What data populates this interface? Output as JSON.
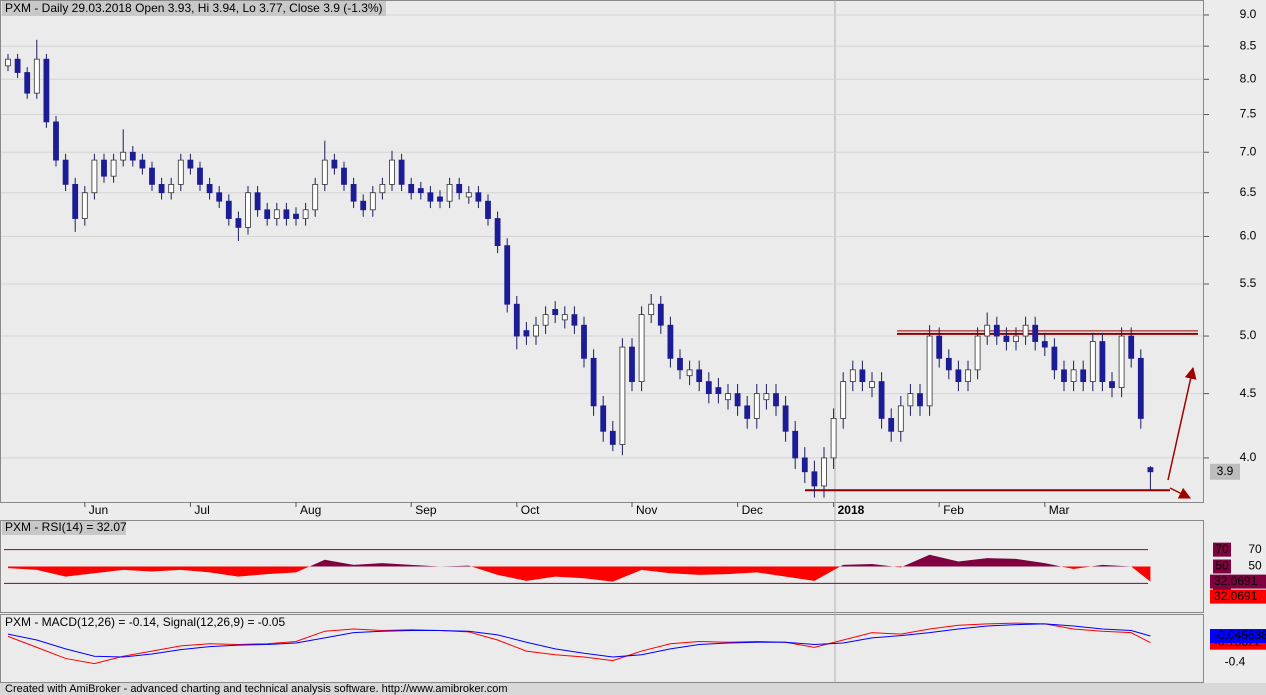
{
  "chart_data": {
    "type": "candlestick",
    "title": "PXM - Daily 29.03.2018 Open 3.93, Hi 3.94, Lo 3.77, Close 3.9 (-1.3%)",
    "open": [
      8.2,
      8.3,
      8.1,
      7.8,
      8.3,
      7.4,
      6.9,
      6.6,
      6.2,
      6.5,
      6.9,
      6.7,
      6.9,
      7.0,
      6.9,
      6.8,
      6.6,
      6.5,
      6.6,
      6.9,
      6.8,
      6.6,
      6.5,
      6.4,
      6.2,
      6.1,
      6.5,
      6.3,
      6.2,
      6.3,
      6.25,
      6.2,
      6.3,
      6.6,
      6.9,
      6.8,
      6.6,
      6.4,
      6.3,
      6.5,
      6.6,
      6.9,
      6.6,
      6.55,
      6.5,
      6.45,
      6.4,
      6.6,
      6.45,
      6.5,
      6.4,
      6.2,
      5.9,
      5.3,
      5.05,
      5.0,
      5.1,
      5.25,
      5.15,
      5.2,
      5.1,
      4.8,
      4.4,
      4.2,
      4.1,
      4.9,
      4.6,
      5.2,
      5.3,
      5.1,
      4.8,
      4.65,
      4.7,
      4.6,
      4.55,
      4.45,
      4.5,
      4.4,
      4.3,
      4.45,
      4.5,
      4.4,
      4.2,
      4.0,
      3.9,
      3.8,
      4.0,
      4.3,
      4.6,
      4.7,
      4.55,
      4.6,
      4.3,
      4.2,
      4.4,
      4.5,
      4.4,
      5.0,
      4.8,
      4.7,
      4.6,
      4.7,
      5.0,
      5.1,
      5.0,
      4.95,
      5.0,
      5.1,
      4.95,
      4.9,
      4.7,
      4.6,
      4.7,
      4.6,
      4.95,
      4.6,
      4.55,
      5.0,
      4.8,
      3.93
    ],
    "high": [
      8.38,
      8.38,
      8.18,
      8.6,
      8.38,
      7.48,
      6.98,
      6.68,
      6.58,
      6.98,
      6.98,
      6.98,
      7.3,
      7.08,
      6.98,
      6.88,
      6.68,
      6.68,
      6.98,
      6.98,
      6.88,
      6.68,
      6.58,
      6.48,
      6.28,
      6.58,
      6.58,
      6.38,
      6.38,
      6.38,
      6.33,
      6.38,
      6.68,
      7.15,
      6.98,
      6.88,
      6.68,
      6.48,
      6.58,
      6.68,
      7.02,
      6.98,
      6.68,
      6.63,
      6.58,
      6.53,
      6.68,
      6.68,
      6.58,
      6.58,
      6.48,
      6.28,
      5.98,
      5.38,
      5.13,
      5.18,
      5.28,
      5.33,
      5.28,
      5.28,
      5.18,
      4.88,
      4.48,
      4.28,
      4.98,
      4.98,
      5.28,
      5.4,
      5.38,
      5.18,
      4.88,
      4.78,
      4.78,
      4.68,
      4.63,
      4.58,
      4.58,
      4.48,
      4.58,
      4.58,
      4.58,
      4.48,
      4.28,
      4.08,
      3.98,
      4.08,
      4.38,
      4.68,
      4.78,
      4.78,
      4.68,
      4.68,
      4.38,
      4.48,
      4.58,
      4.58,
      5.1,
      5.08,
      4.88,
      4.78,
      4.78,
      5.08,
      5.22,
      5.18,
      5.08,
      5.08,
      5.18,
      5.18,
      5.03,
      4.98,
      4.78,
      4.78,
      4.78,
      5.03,
      5.03,
      4.68,
      5.08,
      5.08,
      4.88,
      3.94
    ],
    "low": [
      8.12,
      8.02,
      7.72,
      7.72,
      7.32,
      6.82,
      6.52,
      6.05,
      6.12,
      6.42,
      6.62,
      6.62,
      6.82,
      6.82,
      6.72,
      6.52,
      6.42,
      6.42,
      6.52,
      6.72,
      6.52,
      6.42,
      6.32,
      6.12,
      5.95,
      6.02,
      6.22,
      6.12,
      6.12,
      6.12,
      6.12,
      6.12,
      6.22,
      6.52,
      6.72,
      6.52,
      6.32,
      6.22,
      6.22,
      6.42,
      6.52,
      6.52,
      6.42,
      6.42,
      6.32,
      6.32,
      6.32,
      6.42,
      6.37,
      6.32,
      6.12,
      5.82,
      5.22,
      4.88,
      4.92,
      4.92,
      5.02,
      5.12,
      5.07,
      5.02,
      4.72,
      4.32,
      4.12,
      4.05,
      4.02,
      4.52,
      4.52,
      5.12,
      5.02,
      4.72,
      4.62,
      4.57,
      4.52,
      4.42,
      4.42,
      4.37,
      4.32,
      4.22,
      4.22,
      4.37,
      4.32,
      4.12,
      3.92,
      3.82,
      3.72,
      3.72,
      3.92,
      4.22,
      4.52,
      4.52,
      4.47,
      4.22,
      4.12,
      4.12,
      4.32,
      4.32,
      4.32,
      4.72,
      4.62,
      4.52,
      4.52,
      4.62,
      4.92,
      4.92,
      4.87,
      4.87,
      4.92,
      4.87,
      4.82,
      4.62,
      4.52,
      4.52,
      4.52,
      4.52,
      4.52,
      4.47,
      4.47,
      4.72,
      4.22,
      3.77
    ],
    "close": [
      8.3,
      8.1,
      7.8,
      8.3,
      7.4,
      6.9,
      6.6,
      6.2,
      6.5,
      6.9,
      6.7,
      6.9,
      7.0,
      6.9,
      6.8,
      6.6,
      6.5,
      6.6,
      6.9,
      6.8,
      6.6,
      6.5,
      6.4,
      6.2,
      6.1,
      6.5,
      6.3,
      6.2,
      6.3,
      6.2,
      6.2,
      6.3,
      6.6,
      6.9,
      6.8,
      6.6,
      6.4,
      6.3,
      6.5,
      6.6,
      6.9,
      6.6,
      6.5,
      6.5,
      6.4,
      6.4,
      6.6,
      6.5,
      6.5,
      6.4,
      6.2,
      5.9,
      5.3,
      5.0,
      5.0,
      5.1,
      5.2,
      5.2,
      5.2,
      5.1,
      4.8,
      4.4,
      4.2,
      4.1,
      4.9,
      4.6,
      5.2,
      5.3,
      5.1,
      4.8,
      4.7,
      4.7,
      4.6,
      4.5,
      4.5,
      4.5,
      4.4,
      4.3,
      4.5,
      4.5,
      4.4,
      4.2,
      4.0,
      3.9,
      3.8,
      4.0,
      4.3,
      4.6,
      4.7,
      4.6,
      4.6,
      4.3,
      4.2,
      4.4,
      4.5,
      4.4,
      5.0,
      4.8,
      4.7,
      4.6,
      4.7,
      5.0,
      5.1,
      5.0,
      4.95,
      5.0,
      5.1,
      4.95,
      4.9,
      4.7,
      4.6,
      4.7,
      4.6,
      4.95,
      4.6,
      4.55,
      5.0,
      4.8,
      4.3,
      3.9
    ],
    "up_color": "#ffffff",
    "down_color": "#1c1c96",
    "log_scale": true,
    "ylim": [
      3.69,
      9.25
    ],
    "yticks": [
      {
        "value": 4,
        "label": "4.0"
      },
      4.5,
      {
        "value": 5,
        "label": "5.0"
      },
      5.5,
      {
        "value": 6,
        "label": "6.0"
      },
      6.5,
      {
        "value": 7,
        "label": "7.0"
      },
      7.5,
      {
        "value": 8,
        "label": "8.0"
      },
      8.5,
      {
        "value": 9,
        "label": "9.0"
      }
    ],
    "xticks": [
      {
        "value": 8,
        "label": "Jun"
      },
      {
        "value": 19,
        "label": "Jul"
      },
      {
        "value": 30,
        "label": "Aug"
      },
      {
        "value": 42,
        "label": "Sep"
      },
      {
        "value": 53,
        "label": "Oct"
      },
      {
        "value": 65,
        "label": "Nov"
      },
      {
        "value": 76,
        "label": "Dec"
      },
      {
        "value": 86,
        "label": "2018"
      },
      {
        "value": 97,
        "label": "Feb"
      },
      {
        "value": 108,
        "label": "Mar"
      }
    ],
    "grid": true,
    "price_badge": 3.9,
    "resistance": 5.02,
    "support": 3.77,
    "line_color": "#8b0000",
    "rsi": {
      "title": "PXM - RSI(14) = 32.07",
      "x": [
        0,
        3,
        6,
        9,
        12,
        15,
        18,
        21,
        24,
        27,
        30,
        33,
        36,
        39,
        42,
        45,
        48,
        51,
        54,
        57,
        60,
        63,
        66,
        69,
        72,
        75,
        78,
        81,
        84,
        87,
        90,
        93,
        96,
        99,
        102,
        105,
        108,
        111,
        114,
        117,
        119
      ],
      "values": [
        48,
        46,
        38,
        42,
        46,
        44,
        46,
        43,
        38,
        41,
        43,
        58,
        52,
        54,
        52,
        50,
        51,
        40,
        33,
        38,
        36,
        32,
        46,
        42,
        40,
        41,
        43,
        38,
        33,
        52,
        53,
        49,
        64,
        56,
        60,
        59,
        54,
        47,
        52,
        50,
        32.07
      ],
      "ylim": [
        -4,
        104
      ],
      "yticks": [
        30,
        50,
        70
      ],
      "above_color": "#800040",
      "below_color": "#ff0000",
      "badge": 32.0691
    },
    "macd": {
      "title": "PXM - MACD(12,26) = -0.14, Signal(12,26,9) = -0.05",
      "x": [
        0,
        3,
        6,
        9,
        12,
        15,
        18,
        21,
        24,
        27,
        30,
        33,
        36,
        39,
        42,
        45,
        48,
        51,
        54,
        57,
        60,
        63,
        66,
        69,
        72,
        75,
        78,
        81,
        84,
        87,
        90,
        93,
        96,
        99,
        102,
        105,
        108,
        111,
        114,
        117,
        119
      ],
      "ylim": [
        -0.67,
        0.24
      ],
      "yticks": [
        -0.4
      ],
      "series": [
        {
          "color": "#ff0000",
          "badge": -0.13622,
          "values": [
            -0.05,
            -0.2,
            -0.35,
            -0.42,
            -0.32,
            -0.25,
            -0.18,
            -0.15,
            -0.16,
            -0.15,
            -0.12,
            0.02,
            0.05,
            0.03,
            0.04,
            0.03,
            0.01,
            -0.1,
            -0.25,
            -0.3,
            -0.33,
            -0.38,
            -0.25,
            -0.15,
            -0.12,
            -0.13,
            -0.12,
            -0.13,
            -0.2,
            -0.1,
            0.0,
            -0.02,
            0.05,
            0.1,
            0.12,
            0.13,
            0.12,
            0.05,
            0.02,
            0.0,
            -0.13622
          ]
        },
        {
          "color": "#0000ff",
          "badge": -0.045638,
          "values": [
            -0.02,
            -0.1,
            -0.22,
            -0.32,
            -0.33,
            -0.29,
            -0.23,
            -0.19,
            -0.17,
            -0.16,
            -0.14,
            -0.07,
            0.0,
            0.02,
            0.03,
            0.03,
            0.02,
            -0.03,
            -0.13,
            -0.22,
            -0.28,
            -0.33,
            -0.3,
            -0.22,
            -0.16,
            -0.14,
            -0.13,
            -0.13,
            -0.16,
            -0.14,
            -0.07,
            -0.04,
            0.0,
            0.05,
            0.09,
            0.11,
            0.12,
            0.09,
            0.05,
            0.03,
            -0.045638
          ]
        }
      ]
    },
    "footer": "Created with AmiBroker - advanced charting and technical analysis software. http://www.amibroker.com"
  }
}
